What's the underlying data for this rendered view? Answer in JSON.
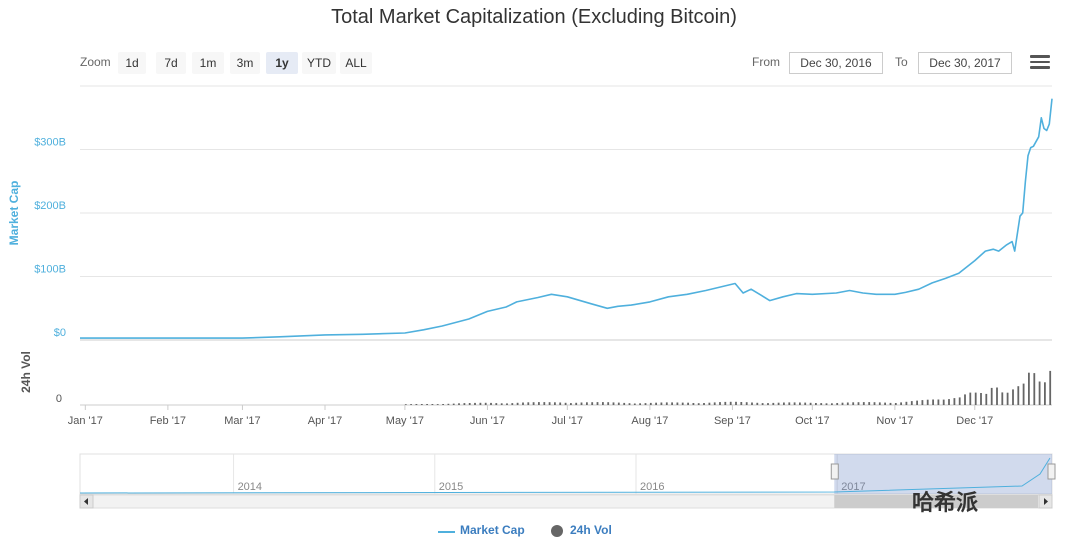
{
  "chart_data": {
    "type": "area",
    "title": "Total Market Capitalization (Excluding Bitcoin)",
    "series": [
      {
        "name": "Market Cap",
        "unit": "USD billions",
        "color": "#4fb0dd",
        "x_dates": [
          "2016-12-30",
          "2017-01-15",
          "2017-02-01",
          "2017-02-15",
          "2017-03-01",
          "2017-03-15",
          "2017-04-01",
          "2017-04-15",
          "2017-05-01",
          "2017-05-08",
          "2017-05-15",
          "2017-05-25",
          "2017-06-01",
          "2017-06-08",
          "2017-06-12",
          "2017-06-20",
          "2017-06-25",
          "2017-07-01",
          "2017-07-10",
          "2017-07-16",
          "2017-07-20",
          "2017-07-25",
          "2017-08-01",
          "2017-08-08",
          "2017-08-15",
          "2017-08-22",
          "2017-09-01",
          "2017-09-02",
          "2017-09-05",
          "2017-09-08",
          "2017-09-12",
          "2017-09-15",
          "2017-09-20",
          "2017-09-25",
          "2017-10-01",
          "2017-10-10",
          "2017-10-15",
          "2017-10-20",
          "2017-10-25",
          "2017-11-01",
          "2017-11-05",
          "2017-11-10",
          "2017-11-15",
          "2017-11-20",
          "2017-11-25",
          "2017-12-01",
          "2017-12-05",
          "2017-12-08",
          "2017-12-10",
          "2017-12-13",
          "2017-12-15",
          "2017-12-16",
          "2017-12-18",
          "2017-12-19",
          "2017-12-20",
          "2017-12-21",
          "2017-12-22",
          "2017-12-23",
          "2017-12-25",
          "2017-12-26",
          "2017-12-27",
          "2017-12-28",
          "2017-12-29",
          "2017-12-30"
        ],
        "values": [
          3,
          3,
          3,
          3,
          3,
          5,
          8,
          9,
          11,
          16,
          22,
          33,
          45,
          52,
          60,
          67,
          72,
          68,
          57,
          50,
          53,
          55,
          60,
          68,
          72,
          78,
          88,
          89,
          74,
          80,
          70,
          62,
          68,
          73,
          72,
          74,
          78,
          74,
          72,
          72,
          75,
          80,
          90,
          97,
          105,
          125,
          140,
          143,
          140,
          150,
          155,
          140,
          195,
          200,
          250,
          290,
          303,
          305,
          320,
          350,
          333,
          330,
          340,
          380
        ]
      },
      {
        "name": "24h Vol",
        "unit": "USD billions (relative)",
        "color": "#666666",
        "x_dates": [
          "2017-05-01",
          "2017-06-01",
          "2017-07-01",
          "2017-08-01",
          "2017-09-01",
          "2017-10-01",
          "2017-11-01",
          "2017-11-10",
          "2017-11-20",
          "2017-11-28",
          "2017-12-05",
          "2017-12-08",
          "2017-12-12",
          "2017-12-16",
          "2017-12-20",
          "2017-12-22",
          "2017-12-24",
          "2017-12-27",
          "2017-12-30"
        ],
        "values": [
          1,
          3,
          4,
          3,
          4,
          3,
          4,
          6,
          8,
          20,
          14,
          25,
          14,
          28,
          50,
          65,
          35,
          30,
          50
        ]
      }
    ],
    "xaxis_ticks": [
      "Jan '17",
      "Feb '17",
      "Mar '17",
      "Apr '17",
      "May '17",
      "Jun '17",
      "Jul '17",
      "Aug '17",
      "Sep '17",
      "Oct '17",
      "Nov '17",
      "Dec '17"
    ],
    "xaxis_tick_dates": [
      "2017-01-01",
      "2017-02-01",
      "2017-03-01",
      "2017-04-01",
      "2017-05-01",
      "2017-06-01",
      "2017-07-01",
      "2017-08-01",
      "2017-09-01",
      "2017-10-01",
      "2017-11-01",
      "2017-12-01"
    ],
    "x_range": [
      "2016-12-30",
      "2017-12-30"
    ],
    "ylabel": "Market Cap",
    "ylabel_volume": "24h Vol",
    "yaxis_ticks": [
      "$0",
      "$100B",
      "$200B",
      "$300B"
    ],
    "yaxis_tick_values": [
      0,
      100,
      200,
      300
    ],
    "ylim": [
      0,
      400
    ],
    "volume_ticks": [
      "0"
    ],
    "volume_ylim": [
      0,
      75
    ],
    "navigator": {
      "years": [
        "2014",
        "2015",
        "2016",
        "2017"
      ],
      "year_fraction": [
        0.158,
        0.365,
        0.572,
        0.779
      ],
      "selected_fraction": [
        0.776,
        1.0
      ]
    },
    "legend": [
      "Market Cap",
      "24h Vol"
    ],
    "legend_position": "bottom-center"
  },
  "toolbar": {
    "zoom_label": "Zoom",
    "zoom_buttons": [
      "1d",
      "7d",
      "1m",
      "3m",
      "1y",
      "YTD",
      "ALL"
    ],
    "active_zoom": "1y",
    "from_label": "From",
    "from_value": "Dec 30, 2016",
    "to_label": "To",
    "to_value": "Dec 30, 2017"
  },
  "watermark": "哈希派"
}
